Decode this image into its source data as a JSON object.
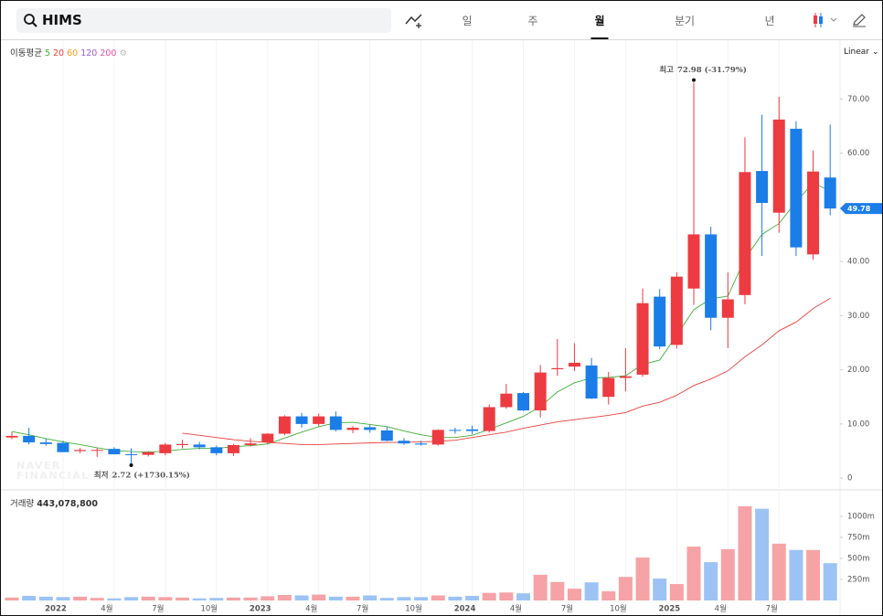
{
  "header": {
    "search": "HIMS",
    "tabs": [
      "일",
      "주",
      "월",
      "분기",
      "년"
    ],
    "active_tab": 2
  },
  "chart_data": {
    "type": "candlestick",
    "categories": [
      null,
      null,
      null,
      "2022",
      null,
      null,
      "4월",
      null,
      null,
      "7월",
      null,
      null,
      "10월",
      null,
      null,
      "2023",
      null,
      null,
      "4월",
      null,
      null,
      "7월",
      null,
      null,
      "10월",
      null,
      null,
      "2024",
      null,
      null,
      "4월",
      null,
      null,
      "7월",
      null,
      null,
      "10월",
      null,
      null,
      "2025",
      null,
      null,
      "4월",
      null,
      null,
      "7월",
      null,
      null,
      null
    ],
    "open": [
      7.5,
      7.8,
      6.6,
      6.5,
      5.0,
      5.1,
      5.4,
      4.4,
      4.3,
      4.6,
      6.1,
      6.2,
      5.7,
      4.6,
      6.1,
      6.6,
      8.2,
      11.4,
      10.0,
      11.4,
      8.9,
      9.4,
      8.8,
      6.9,
      6.4,
      6.2,
      8.9,
      9.0,
      8.7,
      13.1,
      15.7,
      12.5,
      20.1,
      20.6,
      20.8,
      15.0,
      18.5,
      19.1,
      33.5,
      24.6,
      35.0,
      45.0,
      29.6,
      33.8,
      56.7,
      49.0,
      64.5,
      41.3,
      55.5
    ],
    "high": [
      8.5,
      9.3,
      7.3,
      6.9,
      5.6,
      5.6,
      5.7,
      5.5,
      5.0,
      6.5,
      7.1,
      6.7,
      6.0,
      6.3,
      7.4,
      8.3,
      11.6,
      12.0,
      11.9,
      12.3,
      9.6,
      9.8,
      9.5,
      7.4,
      6.9,
      9.0,
      9.3,
      9.7,
      13.6,
      17.4,
      15.9,
      20.9,
      25.7,
      24.9,
      22.2,
      19.6,
      24.0,
      35.0,
      34.9,
      38.0,
      72.98,
      46.4,
      38.0,
      62.9,
      67.1,
      70.4,
      65.9,
      60.5,
      65.3
    ],
    "low": [
      7.2,
      6.2,
      6.0,
      4.8,
      4.6,
      3.9,
      4.4,
      2.72,
      4.0,
      4.2,
      5.5,
      5.3,
      4.2,
      4.1,
      5.8,
      6.3,
      7.9,
      9.3,
      9.6,
      8.6,
      8.3,
      8.4,
      6.8,
      6.1,
      6.0,
      6.0,
      8.2,
      8.1,
      8.4,
      12.8,
      12.4,
      11.2,
      18.9,
      19.8,
      14.6,
      13.6,
      16.0,
      18.7,
      23.8,
      23.9,
      32.0,
      27.3,
      24.0,
      32.1,
      41.0,
      45.3,
      41.0,
      40.3,
      48.5
    ],
    "close": [
      7.8,
      6.6,
      6.3,
      4.8,
      5.2,
      5.2,
      4.4,
      4.3,
      4.8,
      6.2,
      6.3,
      5.7,
      4.6,
      6.1,
      6.4,
      8.2,
      11.4,
      10.0,
      11.4,
      8.9,
      9.3,
      8.9,
      6.9,
      6.4,
      6.2,
      8.9,
      8.8,
      8.7,
      13.1,
      15.6,
      12.5,
      19.5,
      20.3,
      21.3,
      14.7,
      18.5,
      18.8,
      32.3,
      24.3,
      37.2,
      45.0,
      29.6,
      33.0,
      56.5,
      50.8,
      66.2,
      42.6,
      56.6,
      49.78
    ],
    "up_color": "#ec3b41",
    "down_color": "#1b7de8",
    "volume_up_color": "#f5a3a6",
    "volume_down_color": "#9dc3f5",
    "ylim": [
      -2,
      80
    ],
    "yticks": [
      0,
      {
        "value": 10,
        "label": "10.00"
      },
      {
        "value": 20,
        "label": "20.00"
      },
      {
        "value": 30,
        "label": "30.00"
      },
      {
        "value": 40,
        "label": "40.00"
      },
      {
        "value": 50,
        "label": "50.00"
      },
      {
        "value": 60,
        "label": "60.00"
      },
      {
        "value": 70,
        "label": "70.00"
      }
    ],
    "scale_mode": "Linear",
    "ma_title": "이동평균",
    "moving_averages": [
      {
        "name": "5",
        "color": "#3fae3a",
        "values": [
          8.6,
          8.0,
          7.3,
          6.7,
          6.2,
          5.6,
          5.1,
          4.9,
          4.8,
          5.0,
          5.3,
          5.5,
          5.5,
          5.8,
          6.0,
          6.3,
          7.4,
          8.5,
          9.5,
          10.2,
          10.3,
          9.9,
          9.5,
          8.7,
          8.0,
          7.5,
          7.5,
          7.9,
          9.0,
          10.2,
          11.4,
          13.2,
          15.9,
          17.6,
          18.5,
          18.6,
          18.9,
          21.0,
          21.8,
          26.4,
          31.1,
          33.1,
          33.6,
          40.5,
          45.0,
          47.0,
          51.0,
          54.5,
          53.0
        ]
      },
      {
        "name": "20",
        "color": "#e8403f",
        "values": [
          null,
          null,
          null,
          null,
          null,
          null,
          null,
          null,
          null,
          null,
          8.3,
          7.9,
          7.5,
          7.1,
          6.8,
          6.6,
          6.4,
          6.2,
          6.2,
          6.3,
          6.4,
          6.5,
          6.6,
          6.6,
          6.7,
          6.8,
          7.0,
          7.5,
          8.0,
          8.5,
          9.2,
          9.8,
          10.4,
          10.8,
          11.2,
          11.6,
          12.1,
          13.3,
          14.0,
          15.3,
          17.1,
          18.3,
          19.8,
          22.4,
          24.6,
          27.2,
          28.8,
          31.3,
          33.2
        ]
      },
      {
        "name": "60",
        "color": "#f29a1c"
      },
      {
        "name": "120",
        "color": "#9a5bd6"
      },
      {
        "name": "200",
        "color": "#e34fa3"
      }
    ],
    "high_annotation": {
      "label": "최고",
      "text": "72.98 (-31.79%)"
    },
    "low_annotation": {
      "label": "최저",
      "text": "2.72 (+1730.15%)"
    },
    "watermark": [
      "NAVER",
      "FINANCIAL"
    ],
    "volume": {
      "title": "거래량",
      "value_text": "443,078,800",
      "values": [
        35000000,
        55000000,
        45000000,
        40000000,
        45000000,
        30000000,
        25000000,
        40000000,
        45000000,
        40000000,
        35000000,
        25000000,
        30000000,
        35000000,
        35000000,
        50000000,
        65000000,
        60000000,
        70000000,
        45000000,
        45000000,
        60000000,
        30000000,
        40000000,
        40000000,
        60000000,
        45000000,
        55000000,
        90000000,
        95000000,
        85000000,
        305000000,
        220000000,
        140000000,
        215000000,
        110000000,
        280000000,
        510000000,
        260000000,
        195000000,
        640000000,
        455000000,
        610000000,
        1120000000,
        1090000000,
        675000000,
        600000000,
        600000000,
        443078800
      ],
      "ylim": [
        0,
        1260000000
      ],
      "yticks": [
        {
          "value": 250000000,
          "label": "250m"
        },
        {
          "value": 500000000,
          "label": "500m"
        },
        {
          "value": 750000000,
          "label": "750m"
        },
        {
          "value": 1000000000,
          "label": "1000m"
        }
      ]
    }
  }
}
